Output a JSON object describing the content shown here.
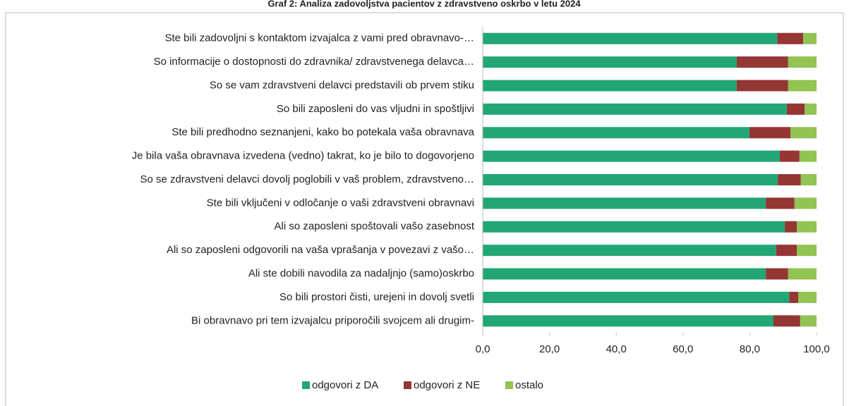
{
  "chart_data": {
    "type": "stacked-bar-horizontal",
    "title": "Graf 2: Analiza zadovoljstva pacientov z zdravstveno oskrbo v letu 2024",
    "categories": [
      "Ste bili zadovoljni s kontaktom izvajalca z vami pred obravnavo-…",
      "So informacije o dostopnosti do zdravnika/ zdravstvenega delavca…",
      "So se vam zdravstveni delavci predstavili ob prvem stiku",
      "So bili zaposleni do vas vljudni in spoštljivi",
      "Ste bili predhodno seznanjeni, kako bo potekala vaša obravnava",
      "Je bila vaša obravnava izvedena (vedno) takrat, ko je bilo to dogovorjeno",
      "So se zdravstveni delavci dovolj poglobili v vaš problem, zdravstveno…",
      "Ste bili vključeni v odločanje o vaši zdravstveni obravnavi",
      "Ali so zaposleni spoštovali vašo zasebnost",
      "Ali so zaposleni odgovorili na vaša vprašanja v povezavi z vašo…",
      "Ali ste dobili navodila za nadaljnjo (samo)oskrbo",
      "So bili prostori čisti, urejeni in dovolj svetli",
      "Bi obravnavo pri tem izvajalcu priporočili svojcem ali drugim-"
    ],
    "series": [
      {
        "name": "odgovori z DA",
        "color": "#22a675",
        "values": [
          88.2,
          76.1,
          76.1,
          91.1,
          79.9,
          89.0,
          88.4,
          84.8,
          90.5,
          87.9,
          84.8,
          91.8,
          87.1
        ]
      },
      {
        "name": "odgovori z NE",
        "color": "#943634",
        "values": [
          7.8,
          15.4,
          15.4,
          5.3,
          12.3,
          5.9,
          6.9,
          8.6,
          3.6,
          6.2,
          6.7,
          2.7,
          8.0
        ]
      },
      {
        "name": "ostalo",
        "color": "#92c353",
        "values": [
          4.0,
          8.5,
          8.5,
          3.6,
          7.8,
          5.1,
          4.7,
          6.6,
          5.9,
          5.9,
          8.5,
          5.5,
          4.9
        ]
      }
    ],
    "xlim": [
      0,
      100
    ],
    "xticks": [
      {
        "value": 0,
        "label": "0,0"
      },
      {
        "value": 20,
        "label": "20,0"
      },
      {
        "value": 40,
        "label": "40,0"
      },
      {
        "value": 60,
        "label": "60,0"
      },
      {
        "value": 80,
        "label": "80,0"
      },
      {
        "value": 100,
        "label": "100,0"
      }
    ],
    "legend": "bottom"
  }
}
